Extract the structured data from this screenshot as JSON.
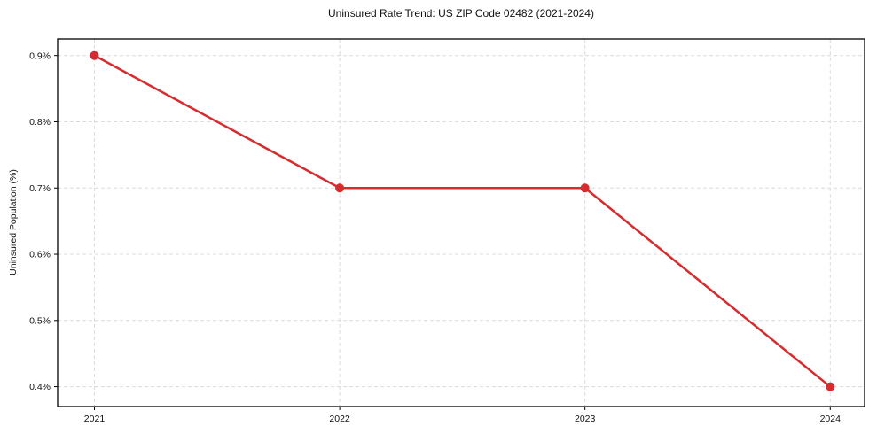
{
  "chart_data": {
    "type": "line",
    "title": "Uninsured Rate Trend: US ZIP Code 02482 (2021-2024)",
    "xlabel": "",
    "ylabel": "Uninsured Population (%)",
    "x": [
      2021,
      2022,
      2023,
      2024
    ],
    "x_tick_labels": [
      "2021",
      "2022",
      "2023",
      "2024"
    ],
    "series": [
      {
        "name": "Uninsured rate",
        "values": [
          0.9,
          0.7,
          0.7,
          0.4
        ],
        "color": "#d62b2f"
      }
    ],
    "y_ticks": [
      0.4,
      0.5,
      0.6,
      0.7,
      0.8,
      0.9
    ],
    "y_tick_suffix": "%",
    "y_tick_decimals": 1,
    "ylim": [
      0.37,
      0.925
    ],
    "xlim": [
      2020.85,
      2024.14
    ],
    "grid": {
      "show": true,
      "line_style": "dashed",
      "color": "#dcdcdc"
    },
    "legend": null,
    "marker": "circle",
    "marker_radius": 5,
    "line_width": 2.5,
    "axis_color": "#000000",
    "tick_length": 4,
    "text_color": "#111111",
    "background": "#ffffff"
  }
}
